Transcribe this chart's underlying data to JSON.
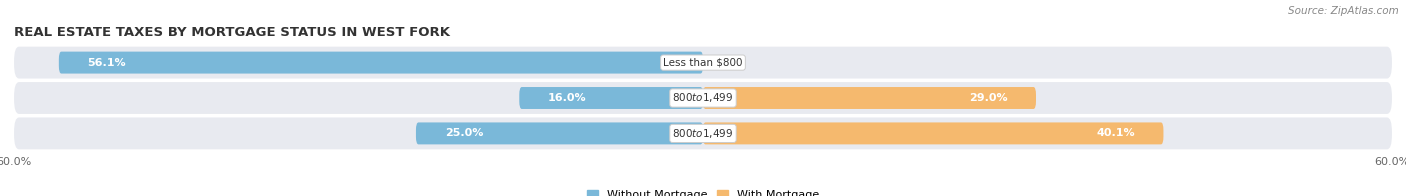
{
  "title": "Real Estate Taxes by Mortgage Status in West Fork",
  "source": "Source: ZipAtlas.com",
  "rows": [
    {
      "label": "Less than $800",
      "without_mortgage": 56.1,
      "with_mortgage": 0.0
    },
    {
      "label": "$800 to $1,499",
      "without_mortgage": 16.0,
      "with_mortgage": 29.0
    },
    {
      "label": "$800 to $1,499",
      "without_mortgage": 25.0,
      "with_mortgage": 40.1
    }
  ],
  "x_max": 60.0,
  "x_min": -60.0,
  "color_without": "#7ab8d9",
  "color_with": "#f5b96e",
  "color_bg_row": "#e8eaf0",
  "background_fig": "#ffffff",
  "bar_height": 0.62,
  "legend_labels": [
    "Without Mortgage",
    "With Mortgage"
  ],
  "axis_label_left": "60.0%",
  "axis_label_right": "60.0%",
  "title_fontsize": 9.5,
  "source_fontsize": 7.5,
  "label_fontsize": 7.5,
  "pct_fontsize": 8.0
}
